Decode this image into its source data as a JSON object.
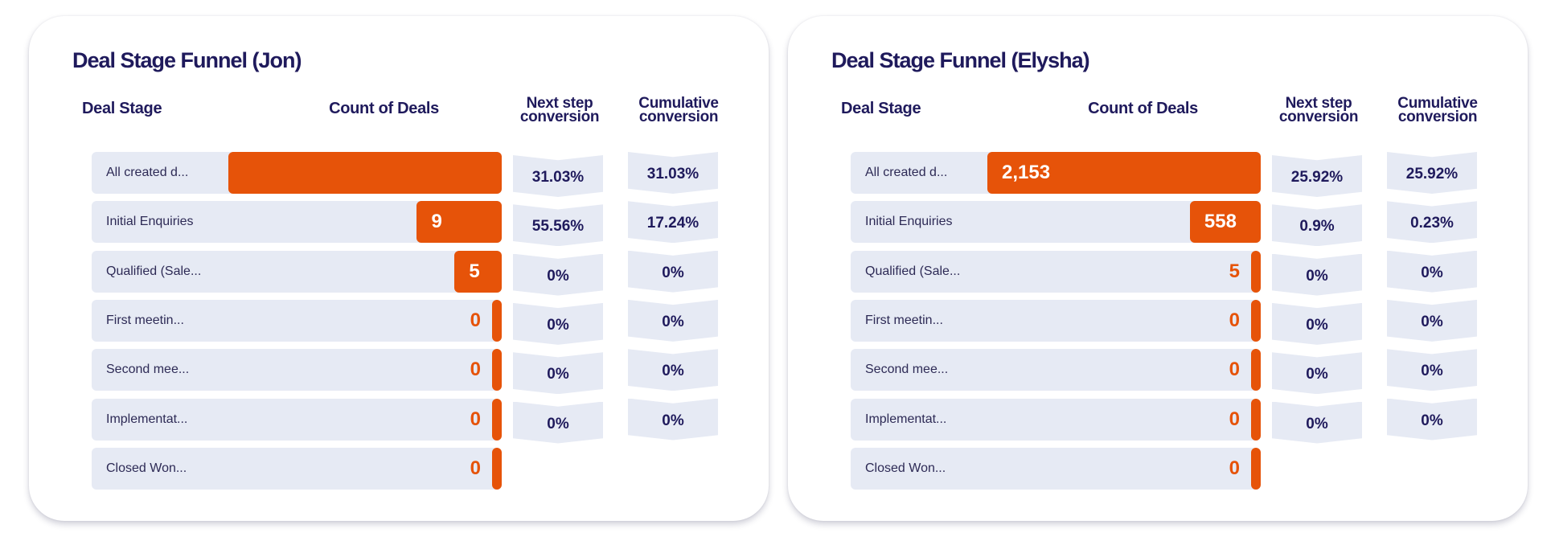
{
  "header_labels": {
    "deal_stage": "Deal Stage",
    "count": "Count of Deals",
    "next_line1": "Next step",
    "next_line2": "conversion",
    "cum_line1": "Cumulative",
    "cum_line2": "conversion"
  },
  "colors": {
    "bar": "#e65309",
    "row_bg": "#e6eaf4",
    "title": "#1f1a5c"
  },
  "chart_data": [
    {
      "type": "bar",
      "title": "Deal Stage Funnel (Jon)",
      "categories": [
        "All created d...",
        "Initial Enquiries",
        "Qualified (Sale...",
        "First meetin...",
        "Second mee...",
        "Implementat...",
        "Closed Won..."
      ],
      "series": [
        {
          "name": "Count of Deals",
          "values": [
            29,
            9,
            5,
            0,
            0,
            0,
            0
          ]
        }
      ],
      "value_labels": [
        "",
        "9",
        "5",
        "0",
        "0",
        "0",
        "0"
      ],
      "next_step_conversion": [
        "31.03%",
        "55.56%",
        "0%",
        "0%",
        "0%",
        "0%"
      ],
      "cumulative_conversion": [
        "31.03%",
        "17.24%",
        "0%",
        "0%",
        "0%",
        "0%"
      ],
      "xlabel": "Count of Deals",
      "ylabel": "Deal Stage"
    },
    {
      "type": "bar",
      "title": "Deal Stage Funnel (Elysha)",
      "categories": [
        "All created d...",
        "Initial Enquiries",
        "Qualified (Sale...",
        "First meetin...",
        "Second mee...",
        "Implementat...",
        "Closed Won..."
      ],
      "series": [
        {
          "name": "Count of Deals",
          "values": [
            2153,
            558,
            5,
            0,
            0,
            0,
            0
          ]
        }
      ],
      "value_labels": [
        "2,153",
        "558",
        "5",
        "0",
        "0",
        "0",
        "0"
      ],
      "next_step_conversion": [
        "25.92%",
        "0.9%",
        "0%",
        "0%",
        "0%",
        "0%"
      ],
      "cumulative_conversion": [
        "25.92%",
        "0.23%",
        "0%",
        "0%",
        "0%",
        "0%"
      ],
      "xlabel": "Count of Deals",
      "ylabel": "Deal Stage"
    }
  ]
}
